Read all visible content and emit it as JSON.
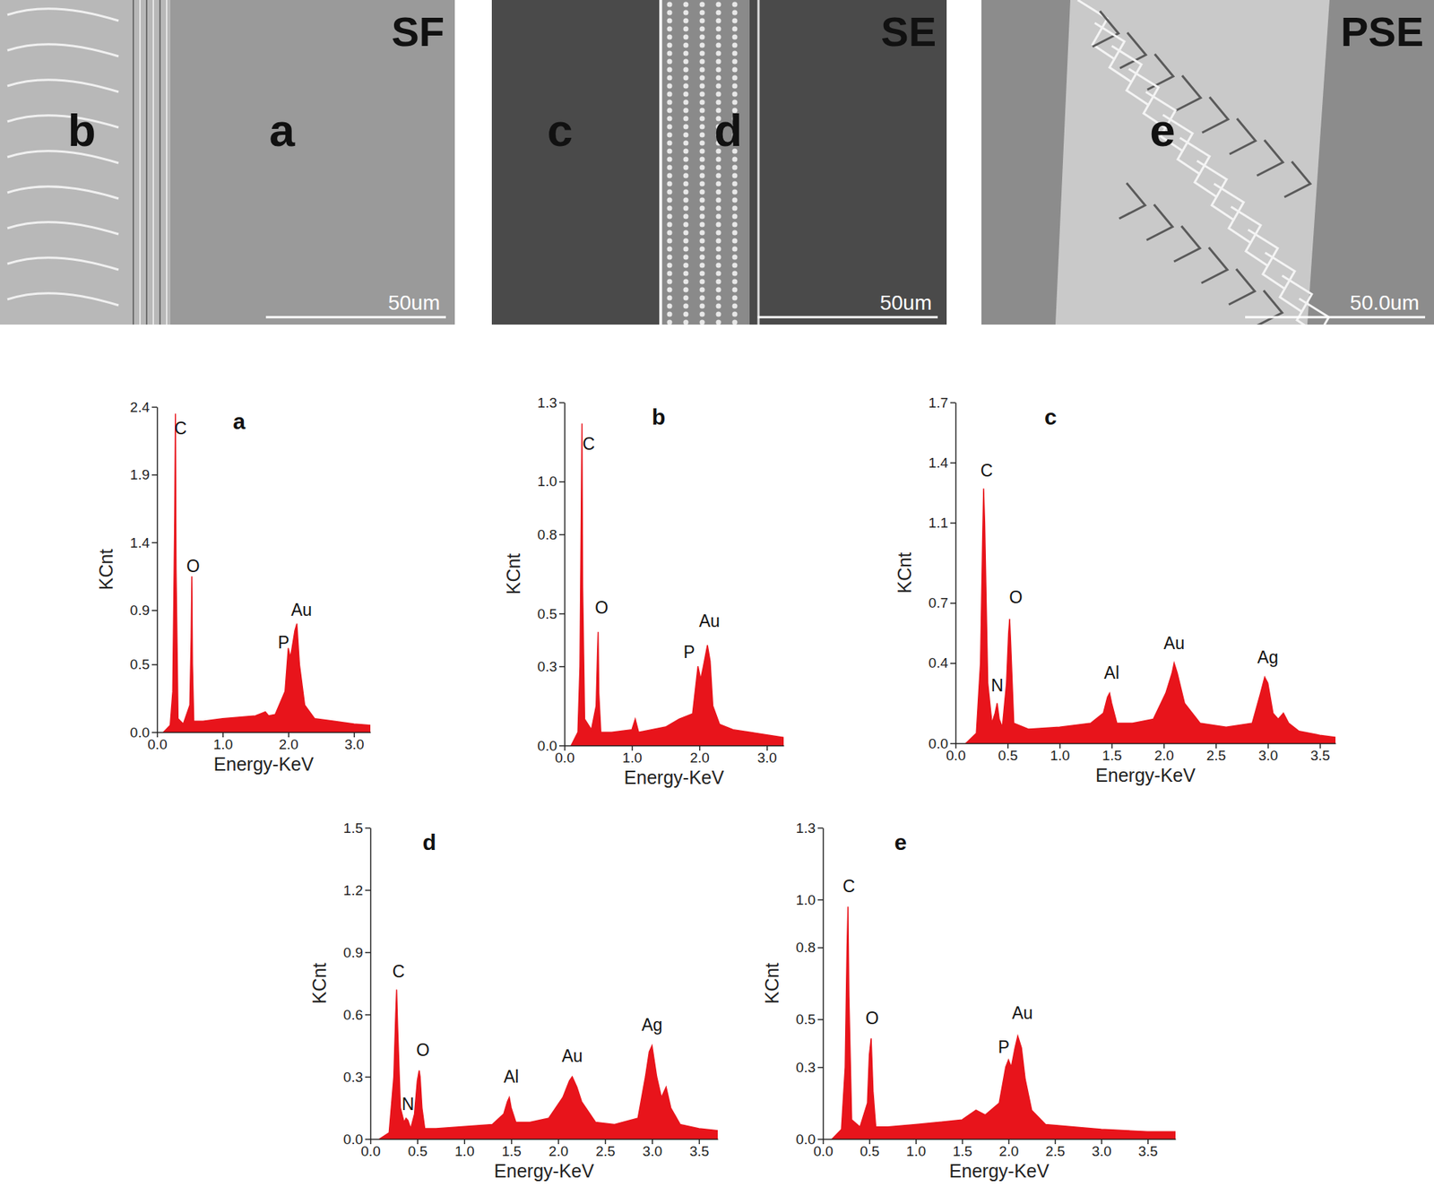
{
  "sem_images": [
    {
      "title": "SF",
      "labels": [
        "b",
        "a"
      ],
      "scale_bar": "50um"
    },
    {
      "title": "SE",
      "labels": [
        "c",
        "d"
      ],
      "scale_bar": "50um"
    },
    {
      "title": "PSE",
      "labels": [
        "e"
      ],
      "scale_bar": "50.0um"
    }
  ],
  "chart_data": [
    {
      "type": "area",
      "title": "a",
      "x_label": "Energy-KeV",
      "y_label": "KCnt",
      "color": "#e8141b",
      "xlim": [
        0,
        3.25
      ],
      "ylim": [
        0,
        2.4
      ],
      "xticks": [
        {
          "value": 0,
          "label": "0.0"
        },
        {
          "value": 1,
          "label": "1.0"
        },
        {
          "value": 2,
          "label": "2.0"
        },
        {
          "value": 3,
          "label": "3.0"
        }
      ],
      "yticks": [
        {
          "value": 0,
          "label": "0.0"
        },
        {
          "value": 0.5,
          "label": "0.5"
        },
        {
          "value": 0.9,
          "label": "0.9"
        },
        {
          "value": 1.4,
          "label": "1.4"
        },
        {
          "value": 1.9,
          "label": "1.9"
        },
        {
          "value": 2.4,
          "label": "2.4"
        }
      ],
      "x": [
        0.1,
        0.2,
        0.24,
        0.27,
        0.28,
        0.29,
        0.32,
        0.4,
        0.5,
        0.52,
        0.53,
        0.54,
        0.56,
        0.7,
        1.0,
        1.5,
        1.65,
        1.7,
        1.8,
        1.95,
        2.0,
        2.03,
        2.05,
        2.1,
        2.13,
        2.17,
        2.25,
        2.4,
        2.7,
        3.0,
        3.25
      ],
      "values": [
        0.0,
        0.05,
        0.3,
        1.6,
        2.35,
        1.2,
        0.1,
        0.06,
        0.2,
        0.7,
        1.15,
        0.5,
        0.08,
        0.08,
        0.1,
        0.12,
        0.15,
        0.12,
        0.13,
        0.3,
        0.62,
        0.55,
        0.6,
        0.75,
        0.8,
        0.5,
        0.2,
        0.1,
        0.08,
        0.06,
        0.05
      ],
      "annotations": [
        {
          "text": "C",
          "x": 0.36,
          "y": 2.2
        },
        {
          "text": "O",
          "x": 0.55,
          "y": 1.18
        },
        {
          "text": "P",
          "x": 1.93,
          "y": 0.62
        },
        {
          "text": "Au",
          "x": 2.2,
          "y": 0.86
        }
      ]
    },
    {
      "type": "area",
      "title": "b",
      "x_label": "Energy-KeV",
      "y_label": "KCnt",
      "color": "#e8141b",
      "xlim": [
        0,
        3.25
      ],
      "ylim": [
        0,
        1.3
      ],
      "xticks": [
        {
          "value": 0,
          "label": "0.0"
        },
        {
          "value": 1,
          "label": "1.0"
        },
        {
          "value": 2,
          "label": "2.0"
        },
        {
          "value": 3,
          "label": "3.0"
        }
      ],
      "yticks": [
        {
          "value": 0,
          "label": "0.0"
        },
        {
          "value": 0.3,
          "label": "0.3"
        },
        {
          "value": 0.5,
          "label": "0.5"
        },
        {
          "value": 0.8,
          "label": "0.8"
        },
        {
          "value": 1,
          "label": "1.0"
        },
        {
          "value": 1.3,
          "label": "1.3"
        }
      ],
      "x": [
        0.1,
        0.2,
        0.23,
        0.25,
        0.26,
        0.27,
        0.3,
        0.4,
        0.47,
        0.49,
        0.5,
        0.51,
        0.54,
        0.7,
        1.0,
        1.05,
        1.1,
        1.5,
        1.7,
        1.9,
        1.98,
        2.02,
        2.06,
        2.12,
        2.16,
        2.2,
        2.3,
        2.5,
        3.0,
        3.25
      ],
      "values": [
        0.0,
        0.05,
        0.3,
        0.9,
        1.22,
        0.6,
        0.1,
        0.06,
        0.15,
        0.35,
        0.43,
        0.2,
        0.05,
        0.05,
        0.06,
        0.1,
        0.05,
        0.07,
        0.1,
        0.12,
        0.3,
        0.25,
        0.3,
        0.38,
        0.32,
        0.15,
        0.08,
        0.06,
        0.04,
        0.03
      ],
      "annotations": [
        {
          "text": "C",
          "x": 0.36,
          "y": 1.12
        },
        {
          "text": "O",
          "x": 0.55,
          "y": 0.5
        },
        {
          "text": "P",
          "x": 1.85,
          "y": 0.33
        },
        {
          "text": "Au",
          "x": 2.15,
          "y": 0.45
        }
      ]
    },
    {
      "type": "area",
      "title": "c",
      "x_label": "Energy-KeV",
      "y_label": "KCnt",
      "color": "#e8141b",
      "xlim": [
        0,
        3.65
      ],
      "ylim": [
        0,
        1.7
      ],
      "xticks": [
        {
          "value": 0,
          "label": "0.0"
        },
        {
          "value": 0.5,
          "label": "0.5"
        },
        {
          "value": 1,
          "label": "1.0"
        },
        {
          "value": 1.5,
          "label": "1.5"
        },
        {
          "value": 2,
          "label": "2.0"
        },
        {
          "value": 2.5,
          "label": "2.5"
        },
        {
          "value": 3,
          "label": "3.0"
        },
        {
          "value": 3.5,
          "label": "3.5"
        }
      ],
      "yticks": [
        {
          "value": 0,
          "label": "0.0"
        },
        {
          "value": 0.4,
          "label": "0.4"
        },
        {
          "value": 0.7,
          "label": "0.7"
        },
        {
          "value": 1.1,
          "label": "1.1"
        },
        {
          "value": 1.4,
          "label": "1.4"
        },
        {
          "value": 1.7,
          "label": "1.7"
        }
      ],
      "x": [
        0.1,
        0.2,
        0.24,
        0.26,
        0.27,
        0.28,
        0.31,
        0.35,
        0.38,
        0.4,
        0.42,
        0.45,
        0.49,
        0.51,
        0.52,
        0.53,
        0.56,
        0.7,
        1.0,
        1.3,
        1.42,
        1.46,
        1.48,
        1.5,
        1.55,
        1.7,
        1.9,
        2.02,
        2.08,
        2.1,
        2.13,
        2.2,
        2.35,
        2.6,
        2.85,
        2.93,
        2.97,
        3.0,
        3.05,
        3.1,
        3.15,
        3.2,
        3.3,
        3.5,
        3.65
      ],
      "values": [
        0.0,
        0.05,
        0.4,
        1.0,
        1.27,
        1.1,
        0.3,
        0.1,
        0.15,
        0.2,
        0.12,
        0.08,
        0.3,
        0.55,
        0.62,
        0.5,
        0.1,
        0.07,
        0.08,
        0.1,
        0.15,
        0.23,
        0.25,
        0.2,
        0.1,
        0.1,
        0.12,
        0.25,
        0.35,
        0.4,
        0.35,
        0.2,
        0.1,
        0.08,
        0.1,
        0.25,
        0.33,
        0.3,
        0.15,
        0.12,
        0.15,
        0.1,
        0.06,
        0.04,
        0.03
      ],
      "annotations": [
        {
          "text": "C",
          "x": 0.3,
          "y": 1.33
        },
        {
          "text": "N",
          "x": 0.4,
          "y": 0.26
        },
        {
          "text": "O",
          "x": 0.58,
          "y": 0.7
        },
        {
          "text": "Al",
          "x": 1.5,
          "y": 0.32
        },
        {
          "text": "Au",
          "x": 2.1,
          "y": 0.47
        },
        {
          "text": "Ag",
          "x": 3.0,
          "y": 0.4
        }
      ]
    },
    {
      "type": "area",
      "title": "d",
      "x_label": "Energy-KeV",
      "y_label": "KCnt",
      "color": "#e8141b",
      "xlim": [
        0,
        3.7
      ],
      "ylim": [
        0,
        1.5
      ],
      "xticks": [
        {
          "value": 0,
          "label": "0.0"
        },
        {
          "value": 0.5,
          "label": "0.5"
        },
        {
          "value": 1,
          "label": "1.0"
        },
        {
          "value": 1.5,
          "label": "1.5"
        },
        {
          "value": 2,
          "label": "2.0"
        },
        {
          "value": 2.5,
          "label": "2.5"
        },
        {
          "value": 3,
          "label": "3.0"
        },
        {
          "value": 3.5,
          "label": "3.5"
        }
      ],
      "yticks": [
        {
          "value": 0,
          "label": "0.0"
        },
        {
          "value": 0.3,
          "label": "0.3"
        },
        {
          "value": 0.6,
          "label": "0.6"
        },
        {
          "value": 0.9,
          "label": "0.9"
        },
        {
          "value": 1.2,
          "label": "1.2"
        },
        {
          "value": 1.5,
          "label": "1.5"
        }
      ],
      "x": [
        0.1,
        0.2,
        0.25,
        0.27,
        0.28,
        0.29,
        0.32,
        0.36,
        0.38,
        0.4,
        0.43,
        0.47,
        0.5,
        0.52,
        0.53,
        0.55,
        0.58,
        0.7,
        1.0,
        1.3,
        1.42,
        1.46,
        1.48,
        1.5,
        1.55,
        1.7,
        1.9,
        2.05,
        2.12,
        2.15,
        2.2,
        2.25,
        2.4,
        2.6,
        2.85,
        2.93,
        2.97,
        3.0,
        3.05,
        3.1,
        3.15,
        3.2,
        3.3,
        3.5,
        3.7
      ],
      "values": [
        0.0,
        0.03,
        0.3,
        0.6,
        0.72,
        0.55,
        0.15,
        0.08,
        0.1,
        0.09,
        0.05,
        0.12,
        0.28,
        0.33,
        0.3,
        0.15,
        0.05,
        0.05,
        0.06,
        0.07,
        0.12,
        0.18,
        0.2,
        0.15,
        0.08,
        0.08,
        0.1,
        0.2,
        0.28,
        0.3,
        0.25,
        0.18,
        0.08,
        0.07,
        0.1,
        0.3,
        0.42,
        0.45,
        0.3,
        0.2,
        0.25,
        0.15,
        0.07,
        0.05,
        0.04
      ],
      "annotations": [
        {
          "text": "C",
          "x": 0.3,
          "y": 0.78
        },
        {
          "text": "N",
          "x": 0.4,
          "y": 0.14
        },
        {
          "text": "O",
          "x": 0.56,
          "y": 0.4
        },
        {
          "text": "Al",
          "x": 1.5,
          "y": 0.27
        },
        {
          "text": "Au",
          "x": 2.15,
          "y": 0.37
        },
        {
          "text": "Ag",
          "x": 3.0,
          "y": 0.52
        }
      ]
    },
    {
      "type": "area",
      "title": "e",
      "x_label": "Energy-KeV",
      "y_label": "KCnt",
      "color": "#e8141b",
      "xlim": [
        0,
        3.8
      ],
      "ylim": [
        0,
        1.3
      ],
      "xticks": [
        {
          "value": 0,
          "label": "0.0"
        },
        {
          "value": 0.5,
          "label": "0.5"
        },
        {
          "value": 1,
          "label": "1.0"
        },
        {
          "value": 1.5,
          "label": "1.5"
        },
        {
          "value": 2,
          "label": "2.0"
        },
        {
          "value": 2.5,
          "label": "2.5"
        },
        {
          "value": 3,
          "label": "3.0"
        },
        {
          "value": 3.5,
          "label": "3.5"
        }
      ],
      "yticks": [
        {
          "value": 0,
          "label": "0.0"
        },
        {
          "value": 0.3,
          "label": "0.3"
        },
        {
          "value": 0.5,
          "label": "0.5"
        },
        {
          "value": 0.8,
          "label": "0.8"
        },
        {
          "value": 1,
          "label": "1.0"
        },
        {
          "value": 1.3,
          "label": "1.3"
        }
      ],
      "x": [
        0.1,
        0.2,
        0.24,
        0.26,
        0.27,
        0.28,
        0.31,
        0.4,
        0.48,
        0.5,
        0.52,
        0.54,
        0.57,
        0.7,
        1.0,
        1.5,
        1.65,
        1.75,
        1.9,
        1.97,
        2.0,
        2.03,
        2.07,
        2.1,
        2.14,
        2.18,
        2.25,
        2.4,
        2.7,
        3.0,
        3.5,
        3.8
      ],
      "values": [
        0.0,
        0.04,
        0.3,
        0.8,
        0.97,
        0.6,
        0.08,
        0.05,
        0.15,
        0.35,
        0.42,
        0.2,
        0.05,
        0.05,
        0.06,
        0.08,
        0.12,
        0.1,
        0.15,
        0.3,
        0.33,
        0.3,
        0.38,
        0.43,
        0.38,
        0.25,
        0.12,
        0.06,
        0.05,
        0.04,
        0.03,
        0.03
      ],
      "annotations": [
        {
          "text": "C",
          "x": 0.28,
          "y": 1.03
        },
        {
          "text": "O",
          "x": 0.53,
          "y": 0.48
        },
        {
          "text": "P",
          "x": 1.95,
          "y": 0.36
        },
        {
          "text": "Au",
          "x": 2.15,
          "y": 0.5
        }
      ]
    }
  ]
}
